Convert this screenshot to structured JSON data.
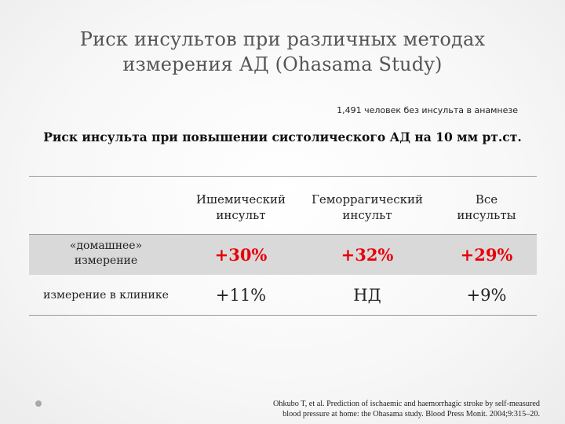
{
  "slide": {
    "title_line1": "Риск инсультов при различных методах",
    "title_line2": "измерения АД (Ohasama Study)",
    "note": "1,491 человек без инсульта в анамнезе",
    "subtitle": "Риск инсульта при повышении систолического АД на 10 мм рт.ст."
  },
  "table": {
    "headers": [
      {
        "line1": "Ишемический",
        "line2": "инсульт"
      },
      {
        "line1": "Геморрагический",
        "line2": "инсульт"
      },
      {
        "line1": "Все",
        "line2": "инсульты"
      }
    ],
    "rows": [
      {
        "label_line1": "«домашнее»",
        "label_line2": "измерение",
        "values": [
          "+30%",
          "+32%",
          "+29%"
        ]
      },
      {
        "label_line1": "измерение в клинике",
        "label_line2": "",
        "values": [
          "+11%",
          "НД",
          "+9%"
        ]
      }
    ]
  },
  "reference": {
    "line1": "Ohkubo T, et al. Prediction of ischaemic and haemorrhagic stroke by self-measured",
    "line2": "blood pressure at home: the Ohasama study. Blood Press Monit. 2004;9:315–20."
  },
  "colors": {
    "highlight": "#e8000a",
    "row_shade": "#d9d9d9"
  }
}
